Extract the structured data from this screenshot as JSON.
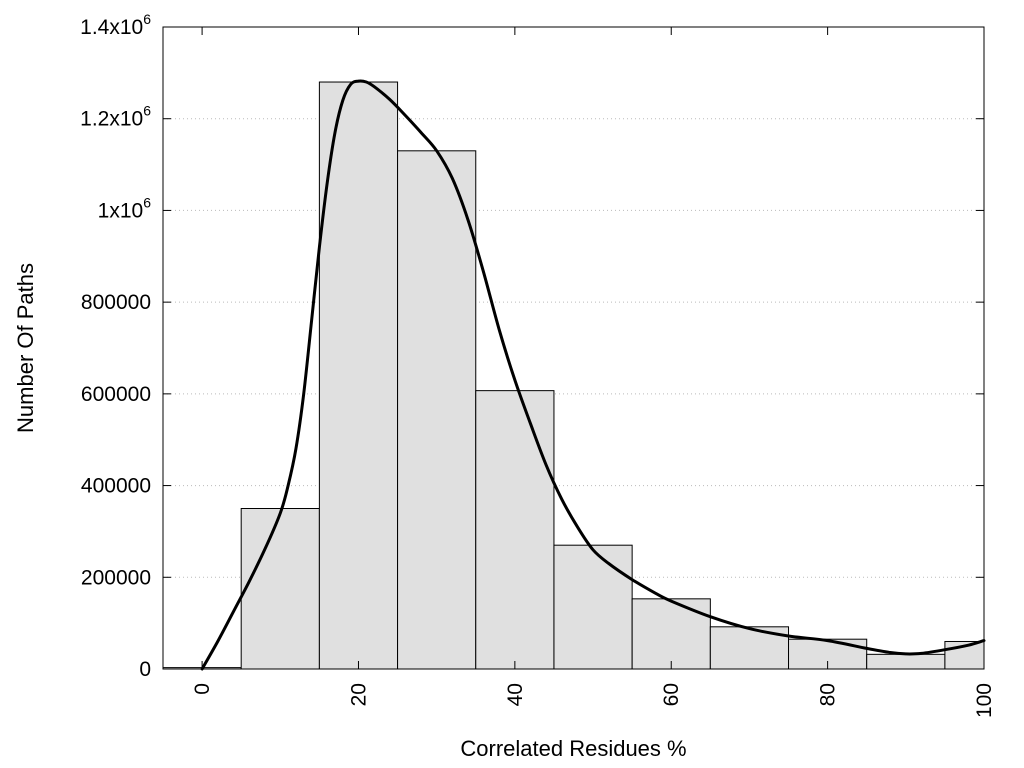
{
  "chart_data": {
    "type": "bar",
    "xlabel": "Correlated Residues %",
    "ylabel": "Number Of Paths",
    "xlim": [
      -5,
      100
    ],
    "ylim": [
      0,
      1400000
    ],
    "grid": "horizontal-dotted",
    "x_ticks": [
      "0",
      "20",
      "40",
      "60",
      "80",
      "100"
    ],
    "y_ticks": [
      {
        "label": "0",
        "value": 0
      },
      {
        "label": "200000",
        "value": 200000
      },
      {
        "label": "400000",
        "value": 400000
      },
      {
        "label": "600000",
        "value": 600000
      },
      {
        "label": "800000",
        "value": 800000
      },
      {
        "label": "1x10",
        "exp": "6",
        "value": 1000000
      },
      {
        "label": "1.2x10",
        "exp": "6",
        "value": 1200000
      },
      {
        "label": "1.4x10",
        "exp": "6",
        "value": 1400000
      }
    ],
    "bars": [
      {
        "from": -5,
        "to": 5,
        "value": 3000
      },
      {
        "from": 5,
        "to": 15,
        "value": 350000
      },
      {
        "from": 15,
        "to": 25,
        "value": 1280000
      },
      {
        "from": 25,
        "to": 35,
        "value": 1130000
      },
      {
        "from": 35,
        "to": 45,
        "value": 607000
      },
      {
        "from": 45,
        "to": 55,
        "value": 270000
      },
      {
        "from": 55,
        "to": 65,
        "value": 153000
      },
      {
        "from": 65,
        "to": 75,
        "value": 92000
      },
      {
        "from": 75,
        "to": 85,
        "value": 65000
      },
      {
        "from": 85,
        "to": 95,
        "value": 32000
      },
      {
        "from": 95,
        "to": 100,
        "value": 60000
      }
    ],
    "curve": {
      "x": [
        0,
        2,
        4,
        6,
        8,
        10,
        11,
        12,
        13,
        14,
        15,
        16,
        17,
        18,
        19,
        20,
        21,
        22,
        24,
        26,
        28,
        30,
        32,
        34,
        36,
        38,
        40,
        42,
        44,
        46,
        48,
        50,
        52,
        55,
        58,
        60,
        65,
        70,
        75,
        80,
        85,
        88,
        90,
        92,
        95,
        98,
        100
      ],
      "y": [
        0,
        60000,
        125000,
        190000,
        260000,
        340000,
        400000,
        480000,
        600000,
        760000,
        920000,
        1060000,
        1170000,
        1240000,
        1275000,
        1282000,
        1280000,
        1270000,
        1242000,
        1207000,
        1170000,
        1130000,
        1070000,
        980000,
        865000,
        740000,
        630000,
        535000,
        445000,
        370000,
        310000,
        260000,
        230000,
        195000,
        165000,
        148000,
        114000,
        88000,
        72000,
        62000,
        45000,
        36000,
        33000,
        34000,
        42000,
        52000,
        62000
      ]
    }
  }
}
